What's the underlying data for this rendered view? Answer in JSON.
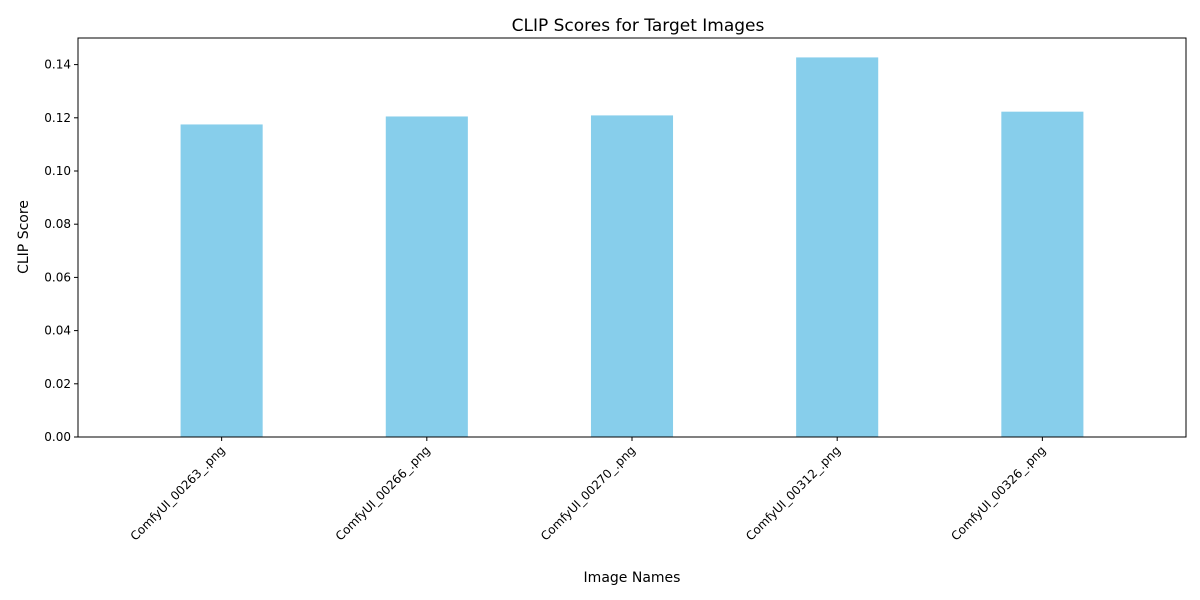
{
  "chart_data": {
    "type": "bar",
    "title": "CLIP Scores for Target Images",
    "xlabel": "Image Names",
    "ylabel": "CLIP Score",
    "categories": [
      "ComfyUI_00263_.png",
      "ComfyUI_00266_.png",
      "ComfyUI_00270_.png",
      "ComfyUI_00312_.png",
      "ComfyUI_00326_.png"
    ],
    "values": [
      0.1175,
      0.1205,
      0.1209,
      0.1427,
      0.1223
    ],
    "ylim": [
      0,
      0.15
    ],
    "yticks": [
      "0.00",
      "0.02",
      "0.04",
      "0.06",
      "0.08",
      "0.10",
      "0.12",
      "0.14"
    ],
    "bar_color": "#87CEEB",
    "grid": false,
    "legend": false
  }
}
